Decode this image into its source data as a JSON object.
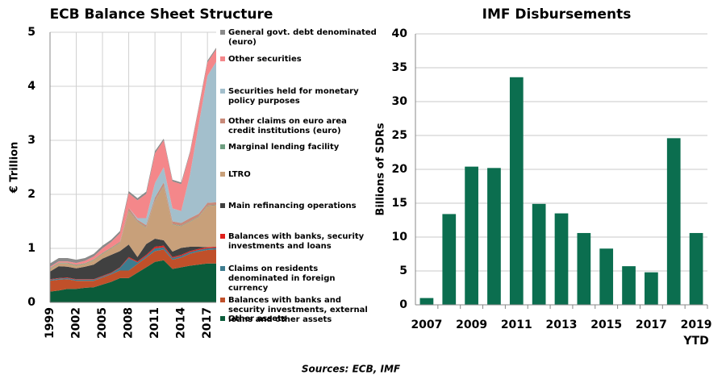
{
  "chart_data": [
    {
      "type": "stacked-area",
      "title": "ECB Balance Sheet Structure",
      "y_label": "€ Trillion",
      "x": [
        1999,
        2000,
        2001,
        2002,
        2003,
        2004,
        2005,
        2006,
        2007,
        2008,
        2009,
        2010,
        2011,
        2012,
        2013,
        2014,
        2015,
        2016,
        2017,
        2018
      ],
      "xlim": [
        1999,
        2018
      ],
      "xticks": [
        1999,
        2002,
        2005,
        2008,
        2011,
        2014,
        2017
      ],
      "ylim": [
        0,
        5
      ],
      "yticks": [
        0,
        1,
        2,
        3,
        4,
        5
      ],
      "grid": true,
      "series": [
        {
          "name": "Other assets",
          "color": "#0b5c3a",
          "values": [
            0.2,
            0.22,
            0.25,
            0.25,
            0.27,
            0.28,
            0.33,
            0.38,
            0.45,
            0.45,
            0.55,
            0.65,
            0.75,
            0.78,
            0.62,
            0.65,
            0.68,
            0.7,
            0.72,
            0.72
          ]
        },
        {
          "name": "Balances with banks and security investments, external loans and other  assets",
          "color": "#c0502a",
          "values": [
            0.2,
            0.2,
            0.18,
            0.15,
            0.13,
            0.12,
            0.13,
            0.14,
            0.14,
            0.14,
            0.16,
            0.18,
            0.2,
            0.2,
            0.17,
            0.18,
            0.22,
            0.24,
            0.25,
            0.26
          ]
        },
        {
          "name": "Claims on residents denominated in foreign currency",
          "color": "#3d7c8f",
          "values": [
            0.02,
            0.02,
            0.02,
            0.02,
            0.02,
            0.02,
            0.02,
            0.02,
            0.05,
            0.23,
            0.03,
            0.03,
            0.05,
            0.04,
            0.03,
            0.03,
            0.03,
            0.03,
            0.03,
            0.03
          ]
        },
        {
          "name": "Balances with banks, security investments and loans",
          "color": "#e0201c",
          "values": [
            0.01,
            0.01,
            0.01,
            0.01,
            0.01,
            0.01,
            0.01,
            0.01,
            0.01,
            0.02,
            0.02,
            0.02,
            0.03,
            0.03,
            0.02,
            0.02,
            0.02,
            0.02,
            0.02,
            0.02
          ]
        },
        {
          "name": "Main refinancing operations",
          "color": "#404040",
          "values": [
            0.14,
            0.22,
            0.2,
            0.2,
            0.23,
            0.27,
            0.32,
            0.33,
            0.3,
            0.23,
            0.08,
            0.2,
            0.15,
            0.1,
            0.1,
            0.13,
            0.08,
            0.04,
            0.003,
            0.003
          ]
        },
        {
          "name": "LTRO",
          "color": "#c8a07a",
          "values": [
            0.05,
            0.05,
            0.06,
            0.05,
            0.05,
            0.08,
            0.09,
            0.12,
            0.15,
            0.62,
            0.65,
            0.3,
            0.7,
            1.0,
            0.5,
            0.4,
            0.46,
            0.55,
            0.76,
            0.76
          ]
        },
        {
          "name": "Marginal lending facility",
          "color": "#6e9e80",
          "values": [
            0.01,
            0.01,
            0.01,
            0.01,
            0.01,
            0.01,
            0.01,
            0.01,
            0.01,
            0.01,
            0.01,
            0.01,
            0.01,
            0.01,
            0.01,
            0.01,
            0.01,
            0.01,
            0.01,
            0.01
          ]
        },
        {
          "name": "Other claims on euro area credit institutions (euro)",
          "color": "#c88a7a",
          "values": [
            0.01,
            0.01,
            0.01,
            0.01,
            0.01,
            0.01,
            0.01,
            0.01,
            0.02,
            0.05,
            0.03,
            0.04,
            0.05,
            0.06,
            0.05,
            0.05,
            0.06,
            0.05,
            0.05,
            0.05
          ]
        },
        {
          "name": "Securities held for monetary policy purposes",
          "color": "#a3bfcc",
          "values": [
            0,
            0,
            0,
            0,
            0,
            0,
            0,
            0,
            0,
            0,
            0.03,
            0.13,
            0.27,
            0.28,
            0.24,
            0.22,
            0.8,
            1.65,
            2.35,
            2.6
          ]
        },
        {
          "name": "Other securities",
          "color": "#f4878a",
          "values": [
            0.02,
            0.02,
            0.02,
            0.03,
            0.04,
            0.05,
            0.08,
            0.1,
            0.15,
            0.27,
            0.33,
            0.45,
            0.55,
            0.5,
            0.5,
            0.5,
            0.4,
            0.3,
            0.25,
            0.23
          ]
        },
        {
          "name": "General govt. debt denominated (euro)",
          "color": "#8a8a8a",
          "values": [
            0.06,
            0.06,
            0.06,
            0.06,
            0.05,
            0.05,
            0.05,
            0.04,
            0.04,
            0.04,
            0.04,
            0.04,
            0.04,
            0.03,
            0.03,
            0.03,
            0.03,
            0.03,
            0.03,
            0.03
          ]
        }
      ]
    },
    {
      "type": "bar",
      "title": "IMF Disbursements",
      "y_label": "Billions of SDRs",
      "categories": [
        "2007",
        null,
        "2009",
        null,
        "2011",
        null,
        "2013",
        null,
        "2015",
        null,
        "2017",
        null,
        "2019 YTD"
      ],
      "values": [
        1,
        13.4,
        20.4,
        20.2,
        33.6,
        14.9,
        13.5,
        10.6,
        8.3,
        5.7,
        4.8,
        24.6,
        10.6
      ],
      "color": "#0b6e4f",
      "ylim": [
        0,
        40
      ],
      "yticks": [
        0,
        5,
        10,
        15,
        20,
        25,
        30,
        35,
        40
      ],
      "grid": true
    }
  ],
  "source": "Sources: ECB, IMF"
}
